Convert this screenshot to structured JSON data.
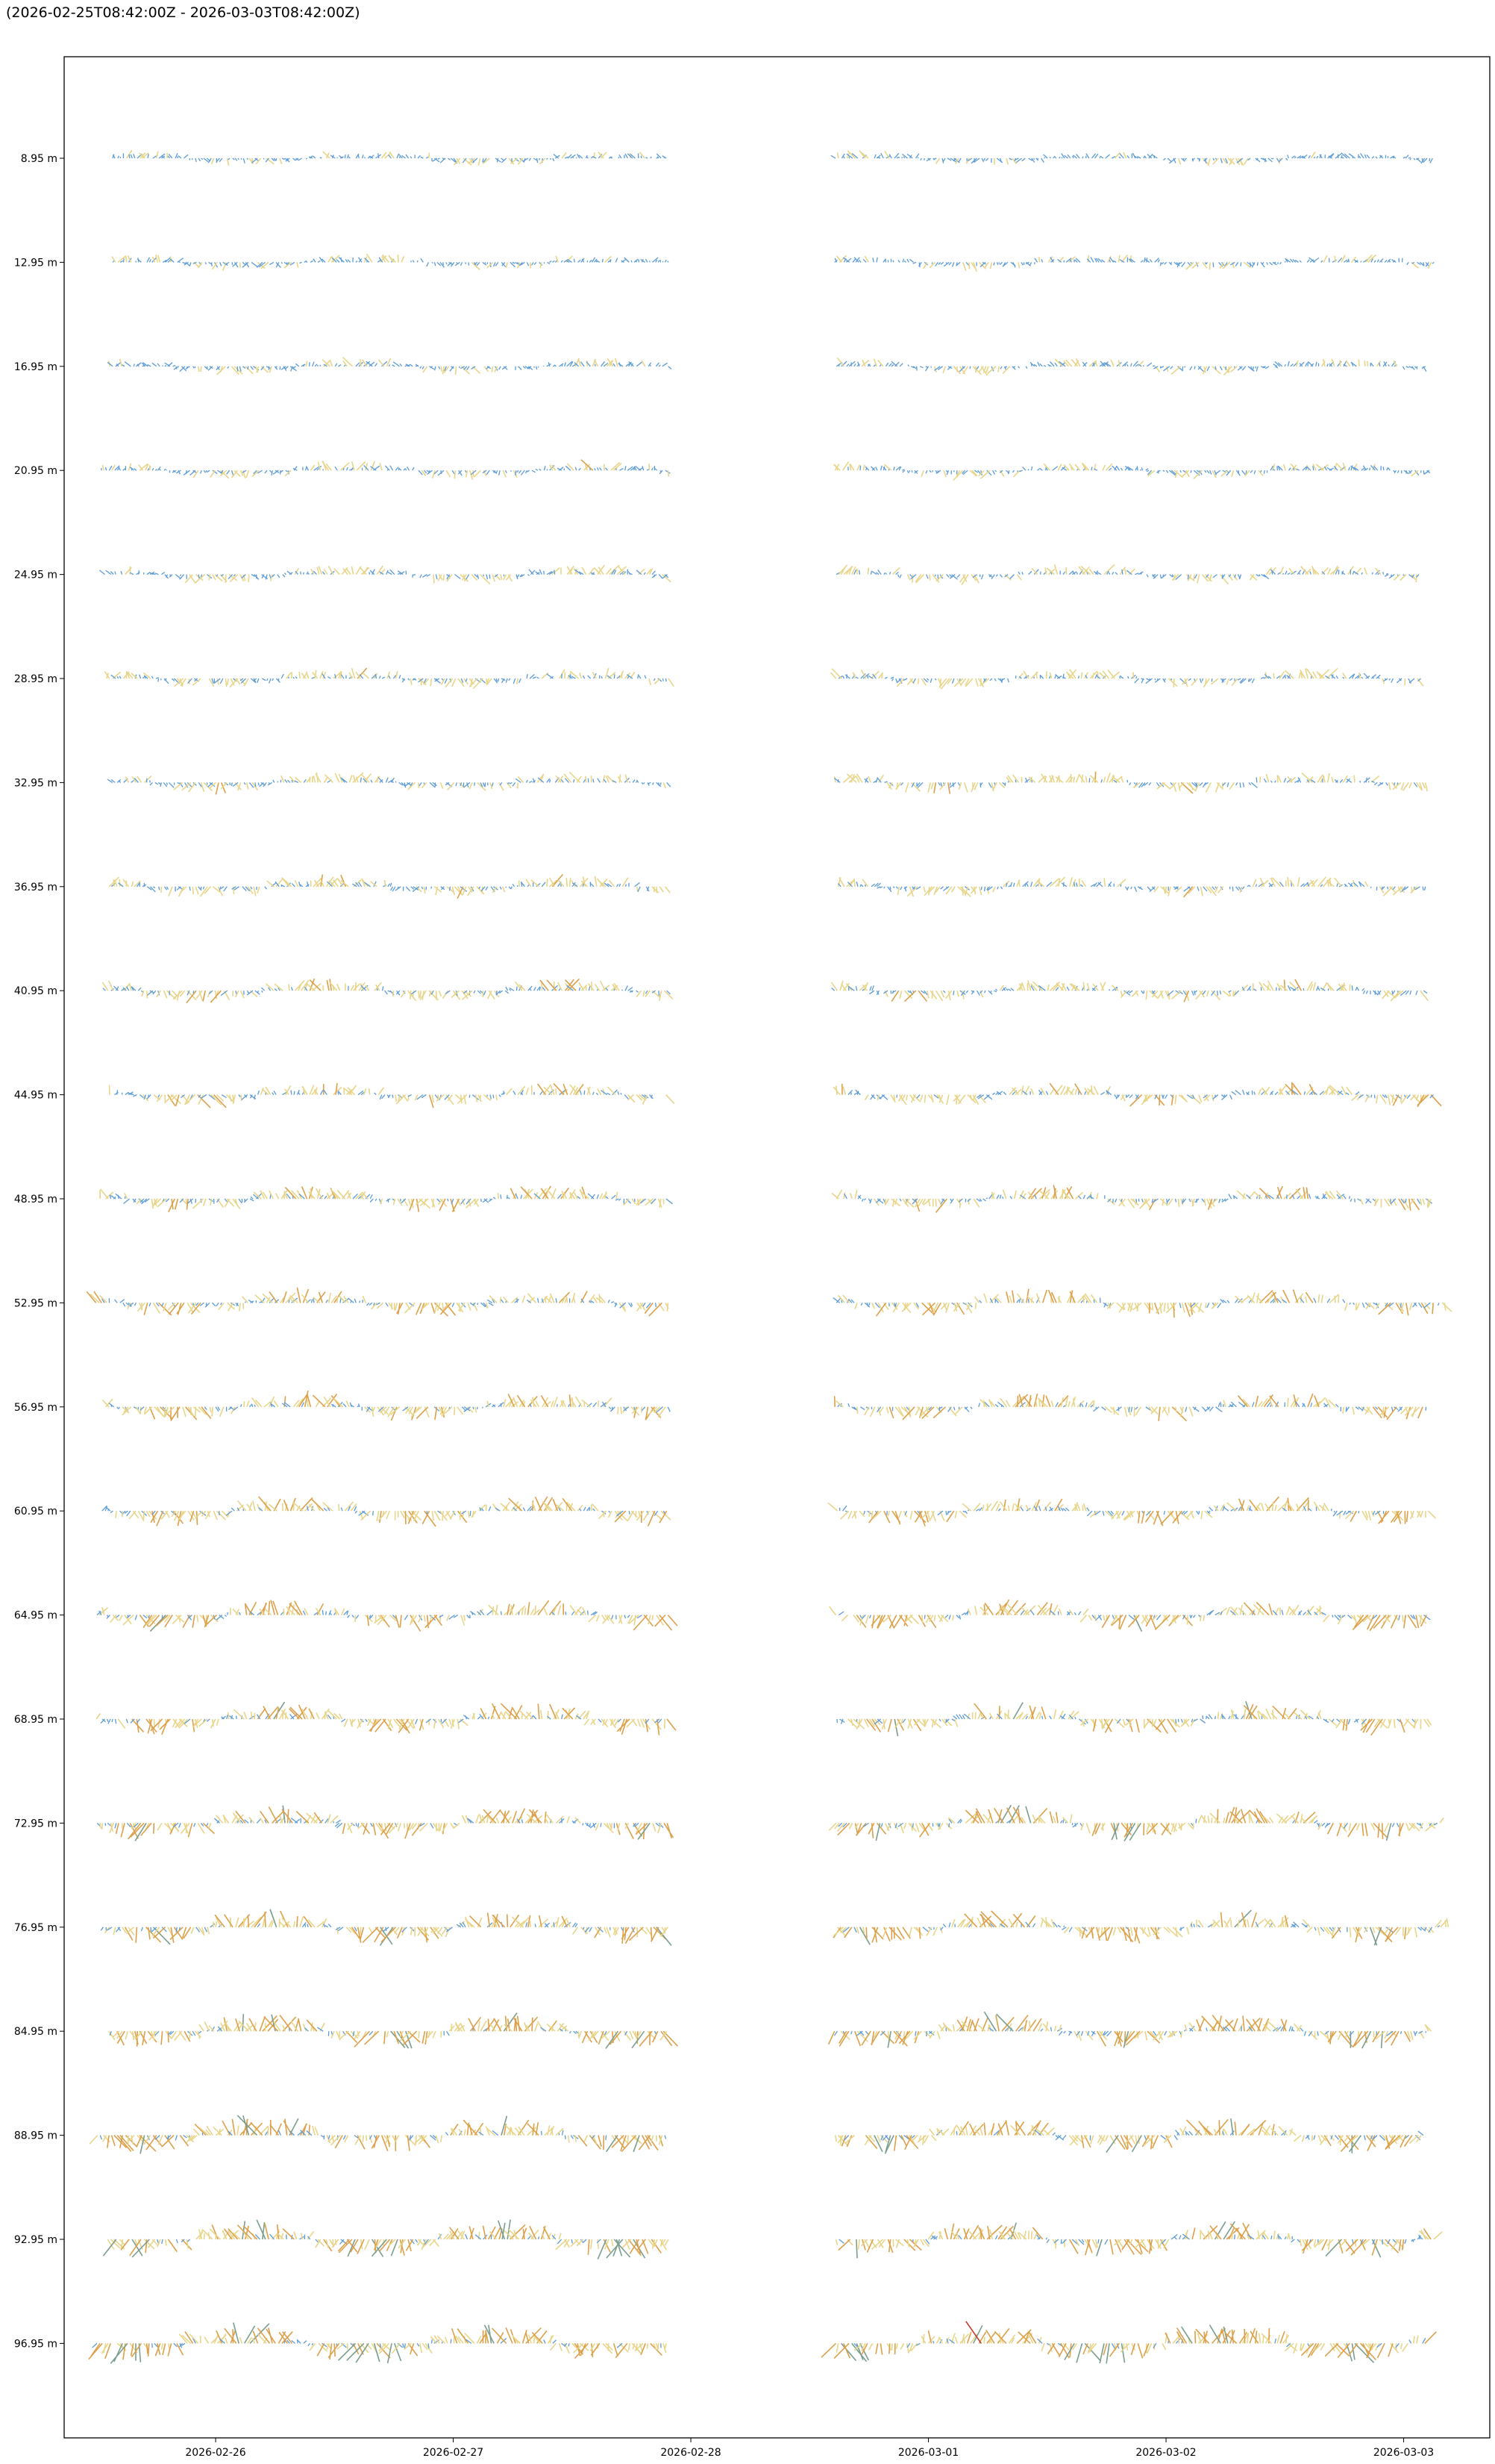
{
  "title": "(2026-02-25T08:42:00Z - 2026-03-03T08:42:00Z)",
  "chart_data": {
    "type": "stick-plot",
    "title": "(2026-02-25T08:42:00Z - 2026-03-03T08:42:00Z)",
    "xlabel": "",
    "ylabel": "",
    "x_range": [
      "2026-02-25T08:42:00Z",
      "2026-03-03T08:42:00Z"
    ],
    "x_ticks": [
      "2026-02-26",
      "2026-02-27",
      "2026-02-28",
      "2026-03-01",
      "2026-03-02",
      "2026-03-03"
    ],
    "y_ticks": [
      "8.95 m",
      "12.95 m",
      "16.95 m",
      "20.95 m",
      "24.95 m",
      "28.95 m",
      "32.95 m",
      "36.95 m",
      "40.95 m",
      "44.95 m",
      "48.95 m",
      "52.95 m",
      "56.95 m",
      "60.95 m",
      "64.95 m",
      "68.95 m",
      "72.95 m",
      "76.95 m",
      "84.95 m",
      "88.95 m",
      "92.95 m",
      "96.95 m"
    ],
    "data_gap": [
      "2026-02-27T21:45:00Z",
      "2026-02-28T14:30:00Z"
    ],
    "series_colors": [
      "#5b9bd5",
      "#e8d58a",
      "#dda04a",
      "#7a9e8e",
      "#c0392b"
    ],
    "grid": false
  }
}
